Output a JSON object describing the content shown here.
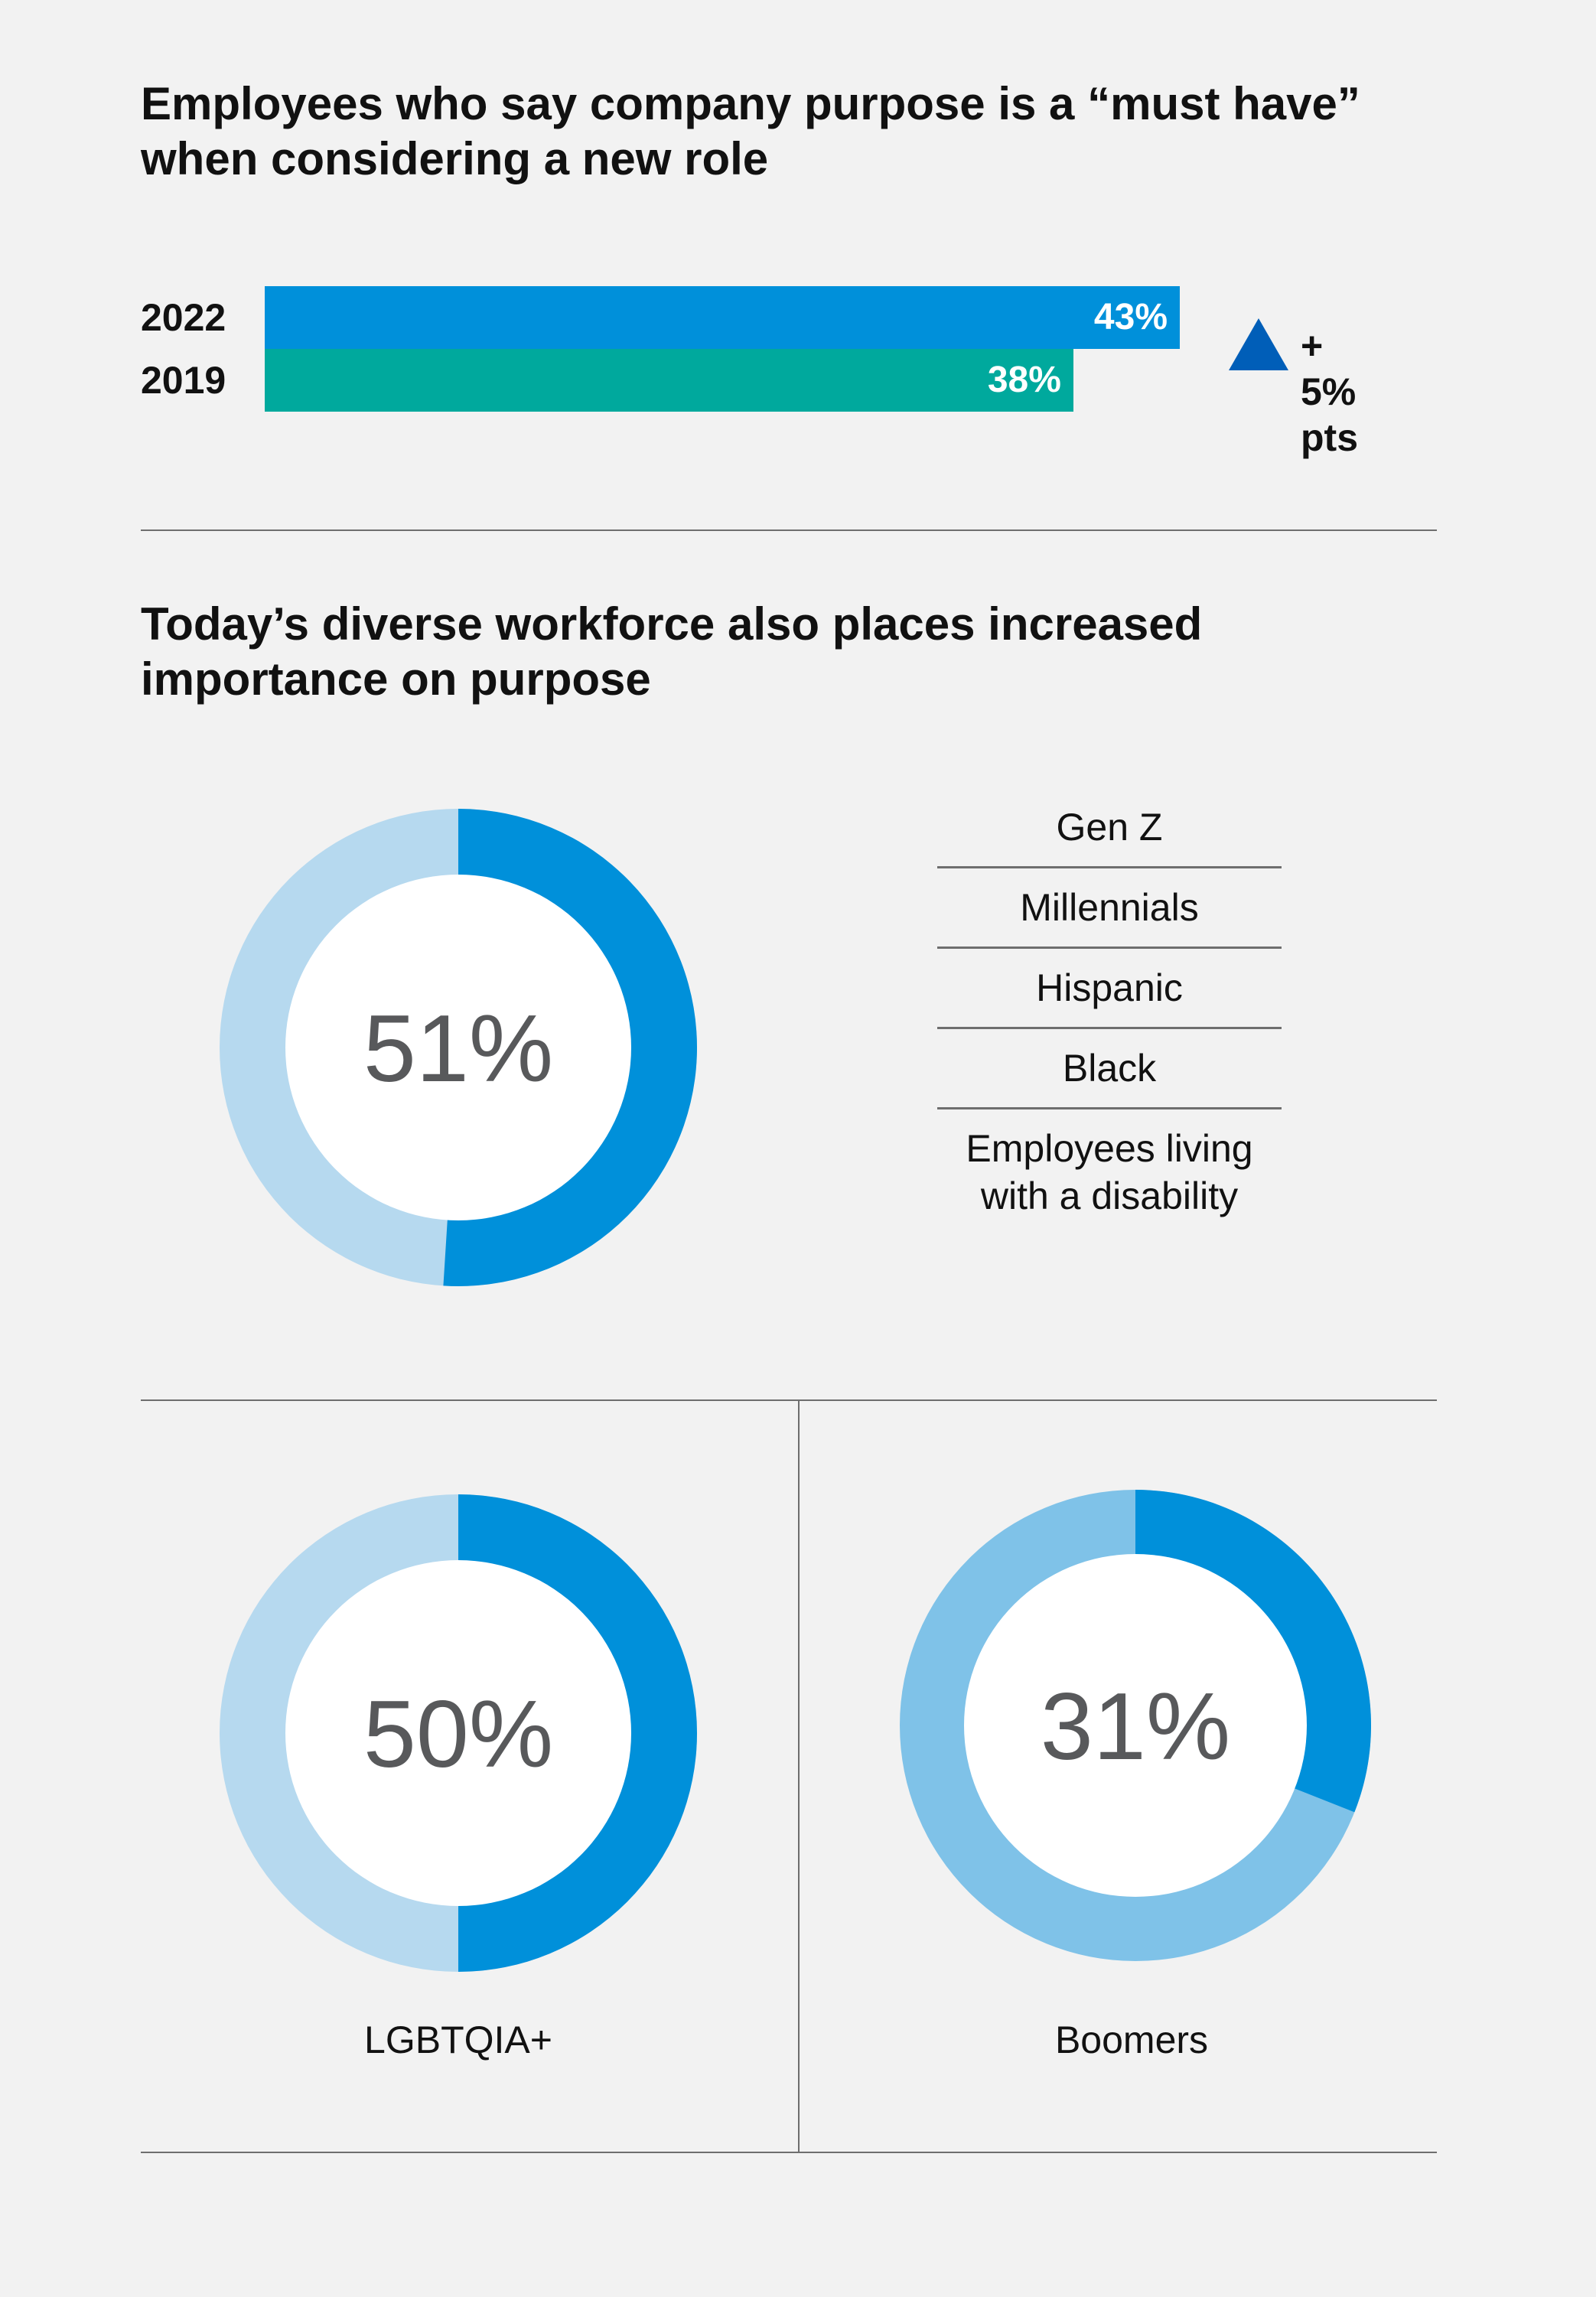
{
  "section1": {
    "title": "Employees who say company purpose is a “must have”\nwhen considering a new role",
    "delta_label": "+ 5% pts"
  },
  "section2": {
    "title": "Today’s diverse workforce also places increased\nimportance on purpose",
    "groups": [
      "Gen Z",
      "Millennials",
      "Hispanic",
      "Black",
      "Employees living\nwith a disability"
    ]
  },
  "colors": {
    "bar_2022": "#0090da",
    "bar_2019": "#00a99d",
    "donut_fill": "#0090da",
    "donut_track_light": "#b6d9ef",
    "donut_track_boomers": "#7fc2e8",
    "donut_center": "#ffffff",
    "triangle": "#005eb8"
  },
  "chart_data": [
    {
      "type": "bar",
      "orientation": "horizontal",
      "categories": [
        "2022",
        "2019"
      ],
      "values": [
        43,
        38
      ],
      "value_labels": [
        "43%",
        "38%"
      ],
      "unit": "%",
      "annotation": "+ 5% pts"
    },
    {
      "type": "pie",
      "variant": "donut",
      "value": 51,
      "label": "51%",
      "applies_to": [
        "Gen Z",
        "Millennials",
        "Hispanic",
        "Black",
        "Employees living with a disability"
      ]
    },
    {
      "type": "pie",
      "variant": "donut",
      "value": 50,
      "label": "50%",
      "caption": "LGBTQIA+"
    },
    {
      "type": "pie",
      "variant": "donut",
      "value": 31,
      "label": "31%",
      "caption": "Boomers"
    }
  ]
}
